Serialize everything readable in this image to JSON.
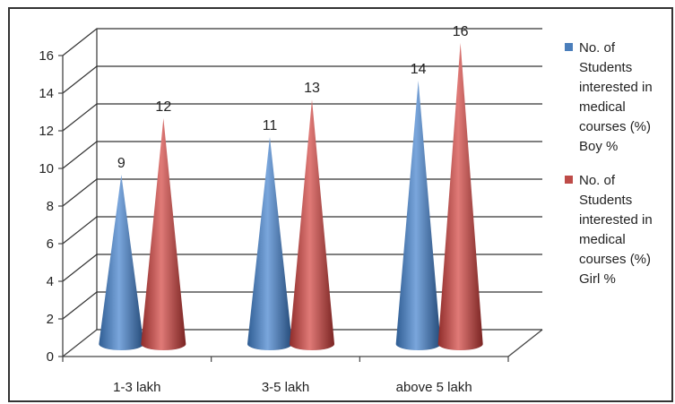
{
  "chart_data": {
    "type": "bar",
    "title": "",
    "xlabel": "",
    "ylabel": "",
    "ylim": [
      0,
      16
    ],
    "yticks": [
      0,
      2,
      4,
      6,
      8,
      10,
      12,
      14,
      16
    ],
    "categories": [
      "1-3 lakh",
      "3-5 lakh",
      "above 5 lakh"
    ],
    "series": [
      {
        "name": "No. of Students interested in medical courses (%) Boy %",
        "legend_lines": [
          "No. of",
          "Students",
          "interested in",
          "medical",
          "courses (%)",
          "Boy %"
        ],
        "color": "#4a7ebb",
        "values": [
          9,
          11,
          14
        ]
      },
      {
        "name": "No. of Students interested in medical courses (%) Girl %",
        "legend_lines": [
          "No. of",
          "Students",
          "interested in",
          "medical",
          "courses (%)",
          "Girl %"
        ],
        "color": "#be4b48",
        "values": [
          12,
          13,
          16
        ]
      }
    ],
    "data_labels": true,
    "grid": true,
    "legend_position": "right",
    "style": "3d-cone"
  }
}
